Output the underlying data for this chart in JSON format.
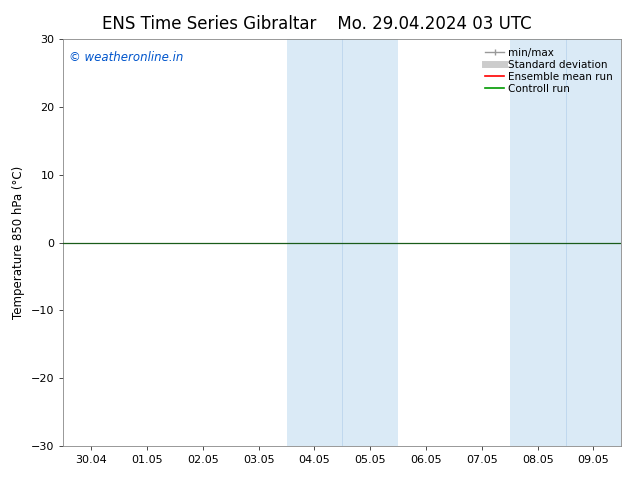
{
  "title": "ENS Time Series Gibraltar",
  "title2": "Mo. 29.04.2024 03 UTC",
  "ylabel": "Temperature 850 hPa (°C)",
  "ylim": [
    -30,
    30
  ],
  "yticks": [
    -30,
    -20,
    -10,
    0,
    10,
    20,
    30
  ],
  "xtick_labels": [
    "30.04",
    "01.05",
    "02.05",
    "03.05",
    "04.05",
    "05.05",
    "06.05",
    "07.05",
    "08.05",
    "09.05"
  ],
  "xtick_positions": [
    0,
    1,
    2,
    3,
    4,
    5,
    6,
    7,
    8,
    9
  ],
  "xlim": [
    -0.5,
    9.5
  ],
  "shaded_regions": [
    {
      "xmin": 3.5,
      "xmax": 5.5,
      "color": "#daeaf6"
    },
    {
      "xmin": 7.5,
      "xmax": 9.5,
      "color": "#daeaf6"
    }
  ],
  "inner_lines": [
    4.5,
    8.5
  ],
  "hline_y": 0,
  "hline_color": "#1a5c1a",
  "hline_lw": 0.9,
  "copyright_text": "© weatheronline.in",
  "copyright_color": "#0055cc",
  "copyright_fontsize": 8.5,
  "legend_items": [
    {
      "label": "min/max",
      "color": "#999999",
      "lw": 1.0,
      "marker": true
    },
    {
      "label": "Standard deviation",
      "color": "#cccccc",
      "lw": 5,
      "marker": false
    },
    {
      "label": "Ensemble mean run",
      "color": "#ff0000",
      "lw": 1.2,
      "marker": false
    },
    {
      "label": "Controll run",
      "color": "#009900",
      "lw": 1.2,
      "marker": false
    }
  ],
  "bg_color": "#ffffff",
  "plot_bg_color": "#ffffff",
  "title_fontsize": 12,
  "axis_label_fontsize": 8.5,
  "tick_fontsize": 8,
  "fig_width": 6.34,
  "fig_height": 4.9,
  "dpi": 100
}
